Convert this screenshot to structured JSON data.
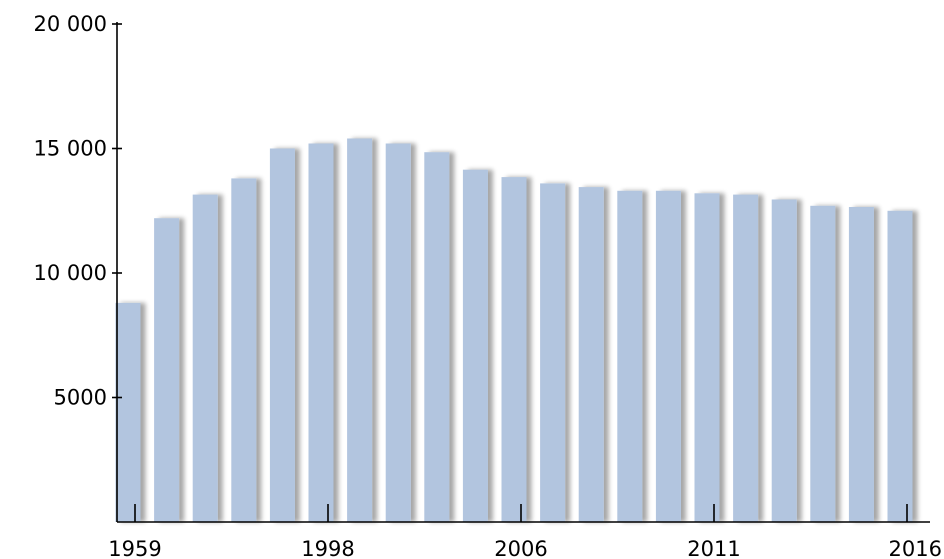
{
  "chart_data": {
    "type": "bar",
    "categories": [
      "1959",
      "",
      "",
      "",
      "",
      "1998",
      "",
      "",
      "",
      "",
      "2006",
      "",
      "",
      "",
      "",
      "2011",
      "",
      "",
      "",
      "",
      "2016"
    ],
    "values": [
      8800,
      12200,
      13150,
      13800,
      15000,
      15200,
      15400,
      15200,
      14850,
      14150,
      13850,
      13600,
      13450,
      13300,
      13300,
      13200,
      13150,
      12950,
      12700,
      12650,
      12500
    ],
    "x_tick_labels": [
      "1959",
      "1998",
      "2006",
      "2011",
      "2016"
    ],
    "y_ticks": [
      5000,
      10000,
      15000,
      20000
    ],
    "y_tick_labels": [
      "5000",
      "10 000",
      "15 000",
      "20 000"
    ],
    "ylim": [
      0,
      20000
    ],
    "title": "",
    "xlabel": "",
    "ylabel": "",
    "grid": false,
    "bar_color": "#b2c5df",
    "bar_shadow_color": "#cccccc",
    "axis_color": "#000000"
  }
}
